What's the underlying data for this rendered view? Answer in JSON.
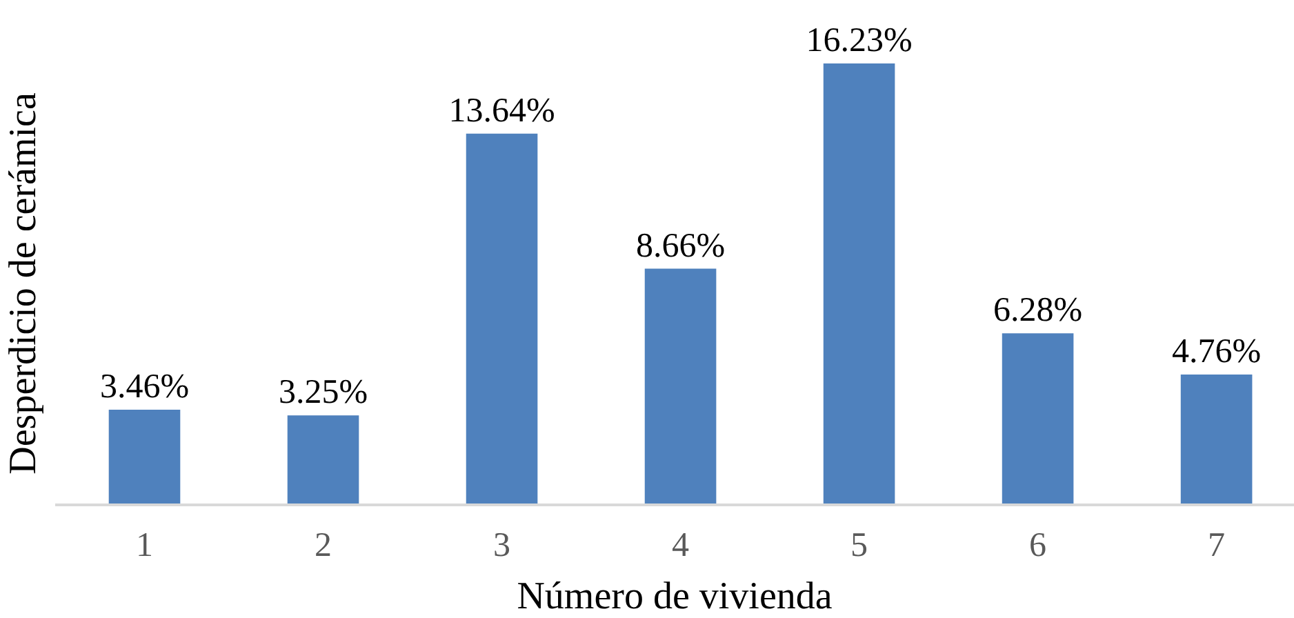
{
  "chart_data": {
    "type": "bar",
    "xlabel": "Número de vivienda",
    "ylabel": "Desperdicio de cerámica",
    "categories": [
      "1",
      "2",
      "3",
      "4",
      "5",
      "6",
      "7"
    ],
    "values": [
      3.46,
      3.25,
      13.64,
      8.66,
      16.23,
      6.28,
      4.76
    ],
    "value_labels": [
      "3.46%",
      "3.25%",
      "13.64%",
      "8.66%",
      "16.23%",
      "6.28%",
      "4.76%"
    ],
    "color": "#4f81bd"
  }
}
